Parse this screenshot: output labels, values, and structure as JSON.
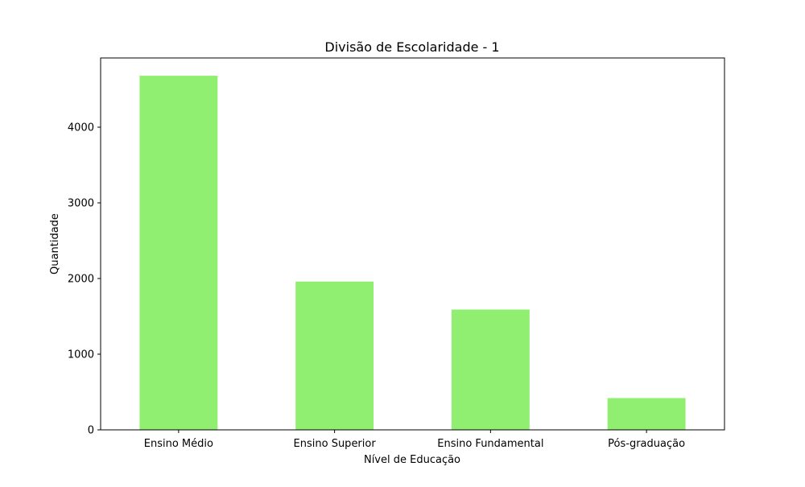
{
  "chart_data": {
    "type": "bar",
    "title": "Divisão de Escolaridade - 1",
    "xlabel": "Nível de Educação",
    "ylabel": "Quantidade",
    "categories": [
      "Ensino Médio",
      "Ensino Superior",
      "Ensino Fundamental",
      "Pós-graduação"
    ],
    "values": [
      4680,
      1960,
      1590,
      420
    ],
    "ylim": [
      0,
      4915
    ],
    "yticks": [
      0,
      1000,
      2000,
      3000,
      4000
    ],
    "grid": false,
    "bar_color": "#90ee70"
  }
}
